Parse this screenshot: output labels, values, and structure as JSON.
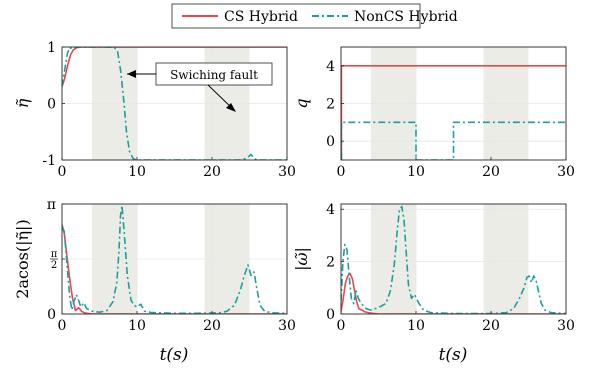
{
  "legend": {
    "entries": [
      {
        "label": "CS Hybrid",
        "color": "#e8474c",
        "dash": "solid"
      },
      {
        "label": "NonCS Hybrid",
        "color": "#1a9e9e",
        "dash": "dashdot"
      }
    ]
  },
  "annotation": {
    "text": "Swiching fault"
  },
  "xlabel": "t(s)",
  "fault_intervals": [
    [
      4,
      10
    ],
    [
      19,
      25
    ]
  ],
  "colors": {
    "cs": "#e8474c",
    "noncs": "#1a9e9e",
    "fault_band": "#ecece6",
    "axis": "#262626",
    "grid": "#e6e6e6"
  },
  "chart_data": [
    {
      "type": "line",
      "id": "eta",
      "ylabel": "η̃",
      "xlim": [
        0,
        30
      ],
      "ylim": [
        -1,
        1
      ],
      "xticks": [
        "0",
        "10",
        "20",
        "30"
      ],
      "xtick_values": [
        0,
        10,
        20,
        30
      ],
      "yticks": [
        "-1",
        "0",
        "1"
      ],
      "ytick_values": [
        -1,
        0,
        1
      ],
      "grid": true,
      "series": [
        {
          "name": "CS Hybrid",
          "x": [
            0,
            0.3,
            0.7,
            1.1,
            1.5,
            2.0,
            2.5,
            3,
            30
          ],
          "y": [
            0.3,
            0.42,
            0.65,
            0.85,
            0.95,
            0.99,
            1.0,
            1.0,
            1.0
          ]
        },
        {
          "name": "NonCS Hybrid",
          "x": [
            0,
            0.3,
            0.7,
            1.0,
            1.3,
            2,
            4,
            6,
            7.0,
            7.4,
            7.8,
            8.2,
            8.6,
            9.0,
            9.5,
            10,
            24,
            24.8,
            25.2,
            25.6,
            26,
            30
          ],
          "y": [
            0.3,
            0.55,
            0.88,
            0.99,
            0.97,
            1.0,
            1.0,
            1.0,
            0.99,
            0.93,
            0.6,
            0.1,
            -0.5,
            -0.85,
            -0.98,
            -1.0,
            -1.0,
            -0.95,
            -0.9,
            -0.97,
            -1.0,
            -1.0
          ]
        }
      ]
    },
    {
      "type": "line",
      "id": "q",
      "ylabel": "q",
      "xlim": [
        0,
        30
      ],
      "ylim": [
        -1,
        5
      ],
      "xticks": [
        "0",
        "10",
        "20",
        "30"
      ],
      "xtick_values": [
        0,
        10,
        20,
        30
      ],
      "yticks": [
        "0",
        "2",
        "4"
      ],
      "ytick_values": [
        0,
        2,
        4
      ],
      "grid": true,
      "series": [
        {
          "name": "CS Hybrid",
          "x": [
            0,
            0.05,
            0.05,
            30
          ],
          "y": [
            -1,
            -1,
            4,
            4
          ]
        },
        {
          "name": "NonCS Hybrid",
          "x": [
            0,
            0.05,
            0.05,
            10,
            10,
            15,
            15,
            30
          ],
          "y": [
            -1,
            -1,
            1,
            1,
            -1,
            -1,
            1,
            1
          ]
        }
      ]
    },
    {
      "type": "line",
      "id": "angle",
      "ylabel": "2acos(|η̃|)",
      "xlim": [
        0,
        30
      ],
      "ylim": [
        0,
        3.1416
      ],
      "xticks": [
        "0",
        "10",
        "20",
        "30"
      ],
      "xtick_values": [
        0,
        10,
        20,
        30
      ],
      "yticks": [
        "0",
        "π/2",
        "π"
      ],
      "ytick_values": [
        0,
        1.5708,
        3.1416
      ],
      "grid": true,
      "series": [
        {
          "name": "CS Hybrid",
          "x": [
            0,
            0.3,
            0.6,
            1.0,
            1.4,
            1.8,
            2.2,
            2.6,
            3.0,
            4,
            30
          ],
          "y": [
            2.55,
            2.3,
            1.75,
            1.05,
            0.45,
            0.1,
            0.18,
            0.08,
            0.03,
            0.0,
            0.0
          ]
        },
        {
          "name": "NonCS Hybrid",
          "x": [
            0,
            0.3,
            0.6,
            1.0,
            1.3,
            1.6,
            1.9,
            2.2,
            2.5,
            2.9,
            3.3,
            4,
            5,
            6,
            6.8,
            7.3,
            7.6,
            7.8,
            8.0,
            8.3,
            8.7,
            9.2,
            9.6,
            10,
            10.5,
            11,
            12,
            15,
            18,
            21,
            22,
            23,
            23.8,
            24.3,
            24.8,
            25.2,
            25.6,
            26,
            26.4,
            27,
            28,
            30
          ],
          "y": [
            2.5,
            2.35,
            1.6,
            0.55,
            0.12,
            0.35,
            0.55,
            0.4,
            0.2,
            0.32,
            0.15,
            0.08,
            0.05,
            0.1,
            0.35,
            0.9,
            1.8,
            2.8,
            3.1,
            2.3,
            1.1,
            0.4,
            0.25,
            0.2,
            0.28,
            0.08,
            0.04,
            0.02,
            0.02,
            0.03,
            0.08,
            0.25,
            0.7,
            1.1,
            1.4,
            1.1,
            1.2,
            0.7,
            0.25,
            0.08,
            0.03,
            0.02
          ]
        }
      ]
    },
    {
      "type": "line",
      "id": "omega",
      "ylabel": "|ω̃|",
      "xlim": [
        0,
        30
      ],
      "ylim": [
        0,
        4.2
      ],
      "xticks": [
        "0",
        "10",
        "20",
        "30"
      ],
      "xtick_values": [
        0,
        10,
        20,
        30
      ],
      "yticks": [
        "0",
        "2",
        "4"
      ],
      "ytick_values": [
        0,
        2,
        4
      ],
      "grid": true,
      "series": [
        {
          "name": "CS Hybrid",
          "x": [
            0,
            0.3,
            0.6,
            0.9,
            1.2,
            1.5,
            1.8,
            2.1,
            2.4,
            2.8,
            3.2,
            4,
            5,
            30
          ],
          "y": [
            0.1,
            0.6,
            1.2,
            1.45,
            1.55,
            1.35,
            0.9,
            0.45,
            0.2,
            0.15,
            0.08,
            0.03,
            0.0,
            0.0
          ]
        },
        {
          "name": "NonCS Hybrid",
          "x": [
            0,
            0.25,
            0.5,
            0.8,
            1.1,
            1.4,
            1.7,
            2.0,
            2.3,
            2.6,
            3.0,
            3.4,
            4,
            5,
            6,
            6.6,
            7.1,
            7.5,
            7.8,
            8.1,
            8.4,
            8.7,
            9.0,
            9.4,
            9.8,
            10.4,
            11,
            12,
            15,
            20,
            22,
            23,
            23.8,
            24.4,
            24.8,
            25.1,
            25.4,
            25.7,
            26.0,
            26.3,
            26.7,
            27.2,
            28,
            30
          ],
          "y": [
            0.5,
            2.0,
            2.65,
            2.45,
            1.4,
            0.55,
            0.4,
            0.9,
            0.6,
            0.45,
            0.3,
            0.2,
            0.15,
            0.25,
            0.4,
            0.9,
            1.9,
            3.2,
            4.0,
            4.1,
            3.6,
            2.3,
            1.1,
            0.6,
            0.75,
            0.4,
            0.15,
            0.05,
            0.02,
            0.02,
            0.05,
            0.2,
            0.6,
            1.0,
            1.4,
            1.45,
            1.2,
            1.45,
            1.3,
            0.9,
            0.4,
            0.15,
            0.05,
            0.02
          ]
        }
      ]
    }
  ]
}
